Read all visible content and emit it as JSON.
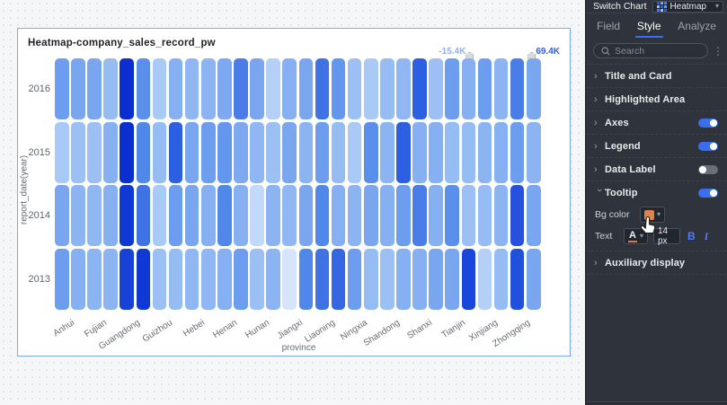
{
  "canvas": {
    "card_title": "Heatmap-company_sales_record_pw"
  },
  "chart_data": {
    "type": "heatmap",
    "title": "Heatmap-company_sales_record_pw",
    "xlabel": "province",
    "ylabel": "report_date(year)",
    "x_categories": [
      "Anhui",
      "Fujian",
      "Guangdong",
      "Guizhou",
      "Hebei",
      "Henan",
      "Hunan",
      "Jiangxi",
      "Liaoning",
      "Ningxia",
      "Shandong",
      "Shanxi",
      "Tianjin",
      "Xinjiang",
      "Zhongqing"
    ],
    "y_categories": [
      "2016",
      "2015",
      "2014",
      "2013"
    ],
    "columns_per_province": 2,
    "legend": {
      "min": "-15.4K",
      "max": "69.4K",
      "gradient_start": "#dcebfe",
      "gradient_end": "#0b2ed1",
      "position": "top-right"
    },
    "cell_colors": [
      [
        "#6d9def",
        "#7aa6f0",
        "#7aa6f0",
        "#96bcf4",
        "#0b2ed1",
        "#5a8fec",
        "#a9c9f6",
        "#86b0f1",
        "#90b7f3",
        "#8db4f2",
        "#7ea9f0",
        "#4a7de7",
        "#7aa6f0",
        "#b4d0f7",
        "#86b0f1",
        "#7aa6f0",
        "#3f72e5",
        "#6396ee",
        "#9cc0f4",
        "#a9c9f6",
        "#96bcf4",
        "#90b7f3",
        "#2d5fe2",
        "#9cc0f4",
        "#6d9def",
        "#86b0f1",
        "#6d9def",
        "#8db4f2",
        "#4a7de7",
        "#7aa6f0"
      ],
      [
        "#a9c9f6",
        "#9cc0f4",
        "#9cc0f4",
        "#86b0f1",
        "#0b2ed1",
        "#5088ea",
        "#96bcf4",
        "#2d5fe2",
        "#7aa6f0",
        "#6d9def",
        "#6396ee",
        "#7ea9f0",
        "#90b7f3",
        "#9cc0f4",
        "#7aa6f0",
        "#8db4f2",
        "#6d9def",
        "#96bcf4",
        "#a9c9f6",
        "#5a8fec",
        "#8db4f2",
        "#2d5fe2",
        "#86b0f1",
        "#86b0f1",
        "#96bcf4",
        "#96bcf4",
        "#8db4f2",
        "#86b0f1",
        "#6d9def",
        "#8db4f2"
      ],
      [
        "#7aa6f0",
        "#8db4f2",
        "#90b7f3",
        "#86b0f1",
        "#0f38d4",
        "#3f72e5",
        "#a9c9f6",
        "#6d9def",
        "#7aa6f0",
        "#86b0f1",
        "#5088ea",
        "#86b0f1",
        "#c2d9f9",
        "#8db4f2",
        "#90b7f3",
        "#7aa6f0",
        "#5088ea",
        "#86b0f1",
        "#8db4f2",
        "#7aa6f0",
        "#86b0f1",
        "#6d9def",
        "#4a7de7",
        "#86b0f1",
        "#5a8fec",
        "#9cc0f4",
        "#96bcf4",
        "#8db4f2",
        "#2750de",
        "#7aa6f0"
      ],
      [
        "#6d9def",
        "#86b0f1",
        "#8db4f2",
        "#8db4f2",
        "#1741d7",
        "#0f38d4",
        "#9cc0f4",
        "#96bcf4",
        "#90b7f3",
        "#90b7f3",
        "#86b0f1",
        "#6d9def",
        "#9cc0f4",
        "#8db4f2",
        "#d7e5fc",
        "#5088ea",
        "#3f72e5",
        "#3566e3",
        "#6d9def",
        "#96bcf4",
        "#9cc0f4",
        "#86b0f1",
        "#86b0f1",
        "#7aa6f0",
        "#7aa6f0",
        "#1b46da",
        "#b4d0f7",
        "#96bcf4",
        "#2050dd",
        "#7aa6f0"
      ]
    ]
  },
  "panel": {
    "switch_chart_label": "Switch Chart",
    "chart_type": {
      "label": "Heatmap"
    },
    "tabs": [
      {
        "label": "Field"
      },
      {
        "label": "Style"
      },
      {
        "label": "Analyze"
      }
    ],
    "search_placeholder": "Search",
    "sections": {
      "title_card": "Title and Card",
      "highlighted_area": "Highlighted Area",
      "axes": "Axes",
      "legend": "Legend",
      "data_label": "Data Label",
      "tooltip": "Tooltip",
      "auxiliary": "Auxiliary display"
    },
    "toggles": {
      "axes": "on",
      "legend": "on",
      "data_label": "off",
      "tooltip": "on"
    },
    "tooltip_settings": {
      "bg_color_label": "Bg color",
      "bg_color_value": "#e2834f",
      "text_label": "Text",
      "text_color_glyph": "A",
      "font_size": "14 px",
      "bold_label": "B",
      "italic_label": "I"
    },
    "accent_color": "#3a6ef0"
  }
}
